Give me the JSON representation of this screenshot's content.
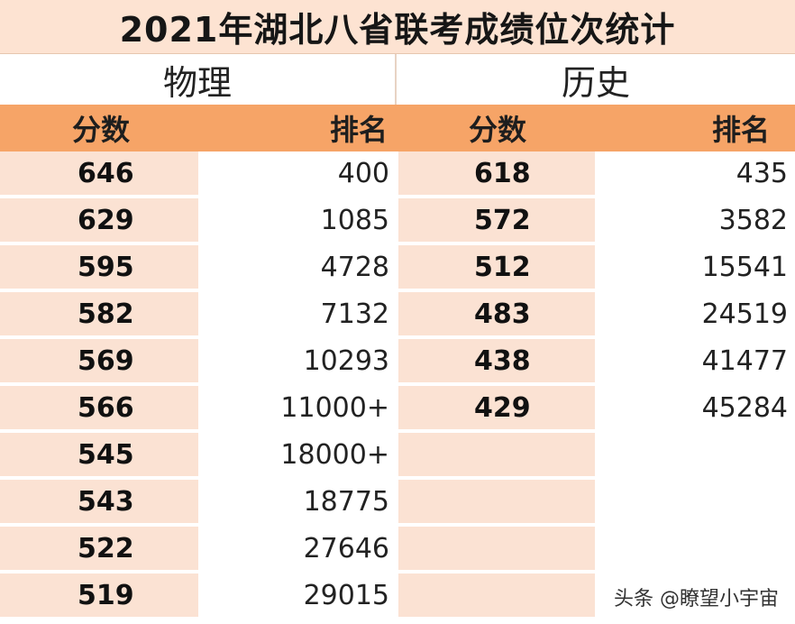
{
  "title": "2021年湖北八省联考成绩位次统计",
  "subjects": {
    "physics": "物理",
    "history": "历史"
  },
  "headers": {
    "score": "分数",
    "rank": "排名"
  },
  "physics_rows": [
    {
      "score": "646",
      "rank": "400"
    },
    {
      "score": "629",
      "rank": "1085"
    },
    {
      "score": "595",
      "rank": "4728"
    },
    {
      "score": "582",
      "rank": "7132"
    },
    {
      "score": "569",
      "rank": "10293"
    },
    {
      "score": "566",
      "rank": "11000+"
    },
    {
      "score": "545",
      "rank": "18000+"
    },
    {
      "score": "543",
      "rank": "18775"
    },
    {
      "score": "522",
      "rank": "27646"
    },
    {
      "score": "519",
      "rank": "29015"
    }
  ],
  "history_rows": [
    {
      "score": "618",
      "rank": "435"
    },
    {
      "score": "572",
      "rank": "3582"
    },
    {
      "score": "512",
      "rank": "15541"
    },
    {
      "score": "483",
      "rank": "24519"
    },
    {
      "score": "438",
      "rank": "41477"
    },
    {
      "score": "429",
      "rank": "45284"
    }
  ],
  "watermark": "头条 @瞭望小宇宙",
  "colors": {
    "header_bg": "#f6a467",
    "title_bg": "#fde3d2",
    "row_tint": "#fbe2d3"
  }
}
